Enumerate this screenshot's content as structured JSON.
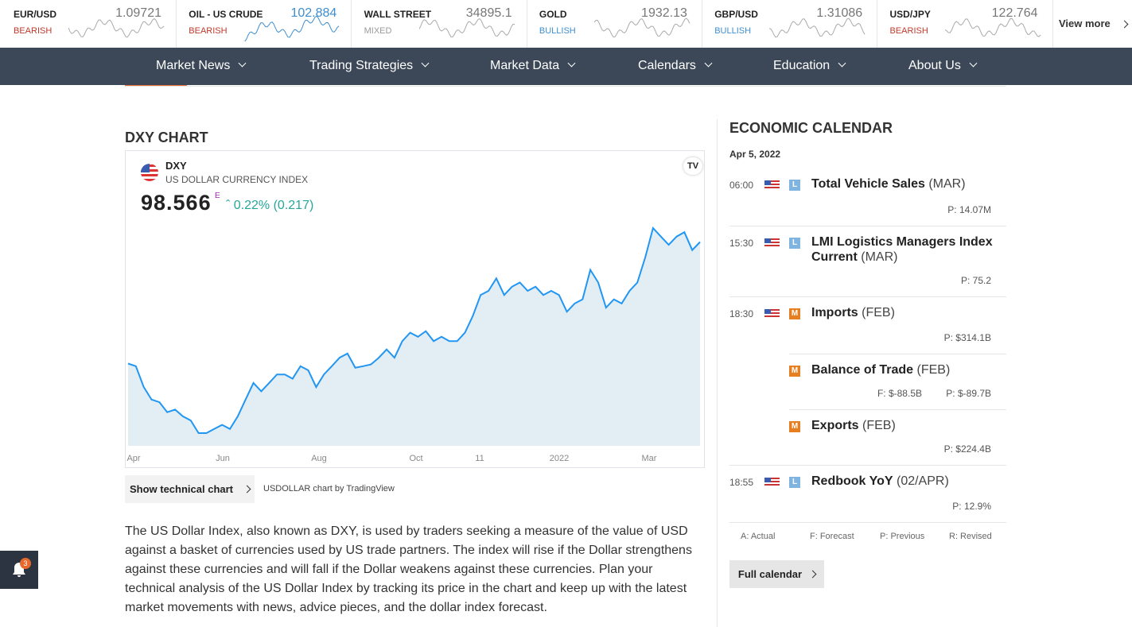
{
  "ticker": {
    "items": [
      {
        "name": "EUR/USD",
        "price": "1.09721",
        "sentiment": "BEARISH"
      },
      {
        "name": "OIL - US CRUDE",
        "price": "102.884",
        "sentiment": "BEARISH"
      },
      {
        "name": "WALL STREET",
        "price": "34895.1",
        "sentiment": "MIXED"
      },
      {
        "name": "GOLD",
        "price": "1932.13",
        "sentiment": "BULLISH"
      },
      {
        "name": "GBP/USD",
        "price": "1.31086",
        "sentiment": "BULLISH"
      },
      {
        "name": "USD/JPY",
        "price": "122.764",
        "sentiment": "BEARISH"
      }
    ],
    "view_more": "View more"
  },
  "nav": [
    "Market News",
    "Trading Strategies",
    "Market Data",
    "Calendars",
    "Education",
    "About Us"
  ],
  "dxy": {
    "heading": "DXY CHART",
    "symbol": "DXY",
    "description": "US DOLLAR CURRENCY INDEX",
    "price": "98.566",
    "price_flag": "E",
    "change": "0.22% (0.217)",
    "chart_data": {
      "type": "line",
      "x_labels": [
        "Apr",
        "Jun",
        "Aug",
        "Oct",
        "11",
        "2022",
        "Mar"
      ],
      "color": "#2196f3",
      "values": [
        92.99,
        92.87,
        91.91,
        91.34,
        91.22,
        90.76,
        90.88,
        90.57,
        90.38,
        89.8,
        89.8,
        89.99,
        90.18,
        89.99,
        90.57,
        91.34,
        92.1,
        91.72,
        92.1,
        92.49,
        92.49,
        92.3,
        92.87,
        92.68,
        91.91,
        92.49,
        92.87,
        93.26,
        93.45,
        92.8,
        92.87,
        92.95,
        93.26,
        93.64,
        93.26,
        94.02,
        94.41,
        94.22,
        94.48,
        94.02,
        94.22,
        94.02,
        94.02,
        94.41,
        95.18,
        96.14,
        96.33,
        96.9,
        96.14,
        96.52,
        96.71,
        96.33,
        96.52,
        96.14,
        96.33,
        96.14,
        95.37,
        95.75,
        95.94,
        97.29,
        96.71,
        95.56,
        95.94,
        95.75,
        96.33,
        96.71,
        97.86,
        99.21,
        98.82,
        98.44,
        98.82,
        99.02,
        98.2,
        98.57
      ]
    },
    "button": "Show technical chart",
    "credit": "USDOLLAR chart by TradingView",
    "paragraph": [
      "The US Dollar Index, also known as DXY, is used by traders seeking a measure of the value of USD",
      "against a basket of currencies used by US trade partners. The index will rise if the Dollar strengthens",
      "against these currencies and will fall if the Dollar weakens against these currencies. Plan your",
      "technical analysis of the US Dollar Index by tracking its price in the chart and keep up with the latest",
      "market movements with news, advice pieces, and the dollar index forecast."
    ]
  },
  "calendar": {
    "title": "ECONOMIC CALENDAR",
    "date": "Apr 5, 2022",
    "events": [
      {
        "time": "06:00",
        "importance": "L",
        "name": "Total Vehicle Sales",
        "period": "(MAR)",
        "stats": [
          "P: 14.07M"
        ]
      },
      {
        "time": "15:30",
        "importance": "L",
        "name": "LMI Logistics Managers Index Current",
        "period": "(MAR)",
        "stats": [
          "P: 75.2"
        ]
      },
      {
        "time": "18:30",
        "importance": "M",
        "name": "Imports",
        "period": "(FEB)",
        "stats": [
          "P: $314.1B"
        ]
      },
      {
        "importance": "M",
        "name": "Balance of Trade",
        "period": "(FEB)",
        "stats": [
          "F: $-88.5B",
          "P: $-89.7B"
        ]
      },
      {
        "importance": "M",
        "name": "Exports",
        "period": "(FEB)",
        "stats": [
          "P: $224.4B"
        ]
      },
      {
        "time": "18:55",
        "importance": "L",
        "name": "Redbook YoY",
        "period": "(02/APR)",
        "stats": [
          "P: 12.9%"
        ]
      }
    ],
    "legend": [
      "A: Actual",
      "F: Forecast",
      "P: Previous",
      "R: Revised"
    ],
    "button": "Full calendar"
  },
  "notifications": {
    "count": "3"
  }
}
